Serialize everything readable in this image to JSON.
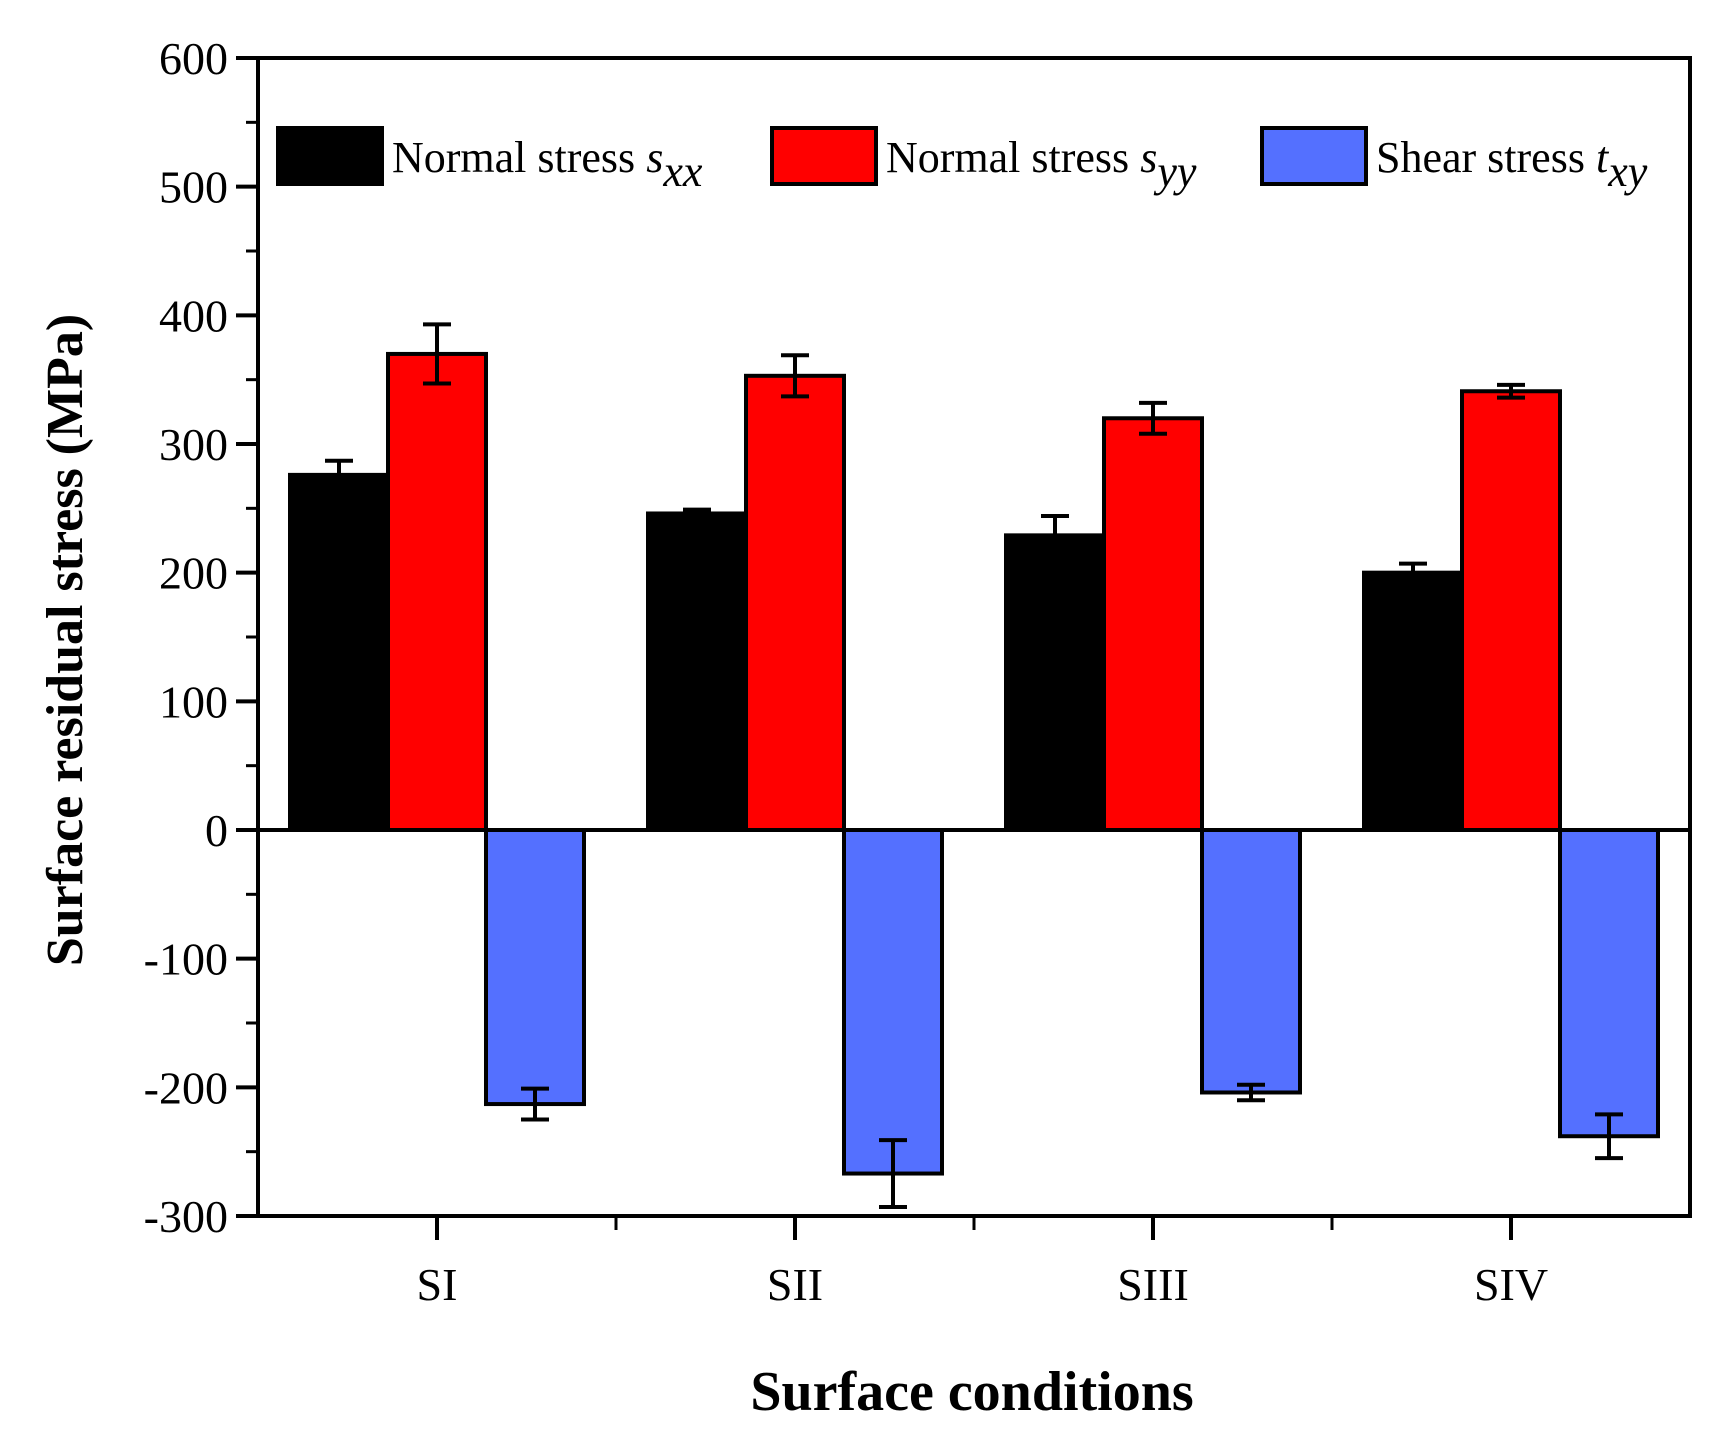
{
  "chart_data": {
    "type": "bar",
    "title": "",
    "xlabel": "Surface conditions",
    "ylabel": "Surface residual stress (MPa)",
    "ylim": [
      -300,
      600
    ],
    "yticks": [
      -300,
      -200,
      -100,
      0,
      100,
      200,
      300,
      400,
      500,
      600
    ],
    "ytick_labels": [
      "-300",
      "-200",
      "-100",
      "0",
      "100",
      "200",
      "300",
      "400",
      "500",
      "600"
    ],
    "categories": [
      "SI",
      "SII",
      "SIII",
      "SIV"
    ],
    "legend_position": "top",
    "series": [
      {
        "name": "Normal stress sxx",
        "label_main": "Normal stress ",
        "label_symbol": "s",
        "label_subscript": "xx",
        "color": "#000000",
        "values": [
          276,
          246,
          229,
          200
        ],
        "errors": [
          11,
          3,
          15,
          7
        ]
      },
      {
        "name": "Normal stress syy",
        "label_main": "Normal stress ",
        "label_symbol": "s",
        "label_subscript": "yy",
        "color": "#ff0000",
        "values": [
          370,
          353,
          320,
          341
        ],
        "errors": [
          23,
          16,
          12,
          5
        ]
      },
      {
        "name": "Shear stress txy",
        "label_main": "Shear stress ",
        "label_symbol": "t",
        "label_subscript": "xy",
        "color": "#5470ff",
        "values": [
          -213,
          -267,
          -204,
          -238
        ],
        "errors": [
          12,
          26,
          6,
          17
        ]
      }
    ]
  }
}
